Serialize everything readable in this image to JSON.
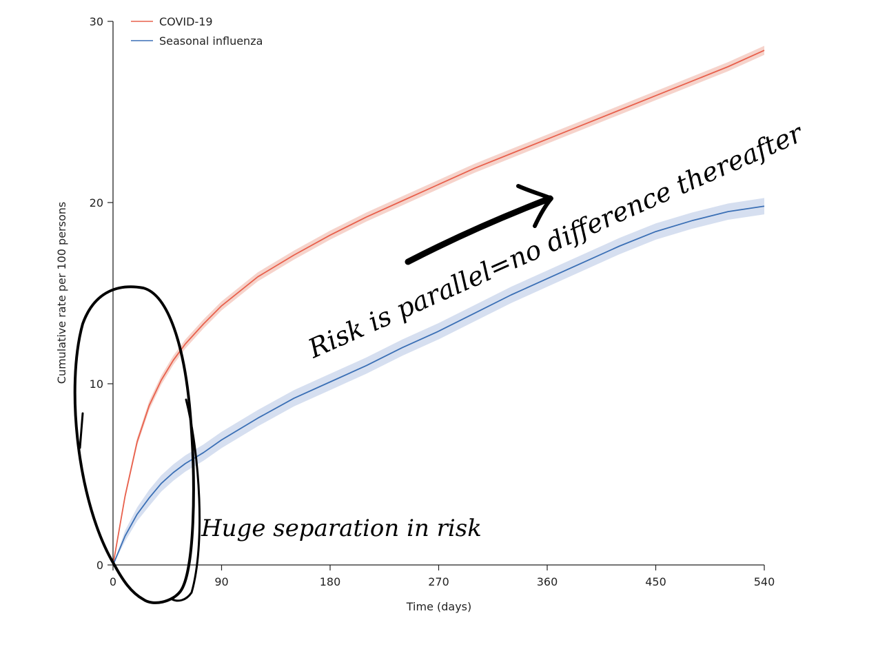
{
  "chart_data": {
    "type": "line",
    "title": "",
    "xlabel": "Time (days)",
    "ylabel": "Cumulative rate per 100 persons",
    "xlim": [
      0,
      540
    ],
    "ylim": [
      0,
      30
    ],
    "x_ticks": [
      0,
      90,
      180,
      270,
      360,
      450,
      540
    ],
    "y_ticks": [
      0,
      10,
      20,
      30
    ],
    "x_tick_labels": [
      "0",
      "90",
      "180",
      "270",
      "360",
      "450",
      "540"
    ],
    "y_tick_labels": [
      "0",
      "10",
      "20",
      "30"
    ],
    "grid": false,
    "legend_position": "top-left",
    "x": [
      0,
      10,
      20,
      30,
      40,
      50,
      60,
      75,
      90,
      120,
      150,
      180,
      210,
      240,
      270,
      300,
      330,
      360,
      390,
      420,
      450,
      480,
      510,
      540
    ],
    "series": [
      {
        "name": "COVID-19",
        "color": "#e8604c",
        "band_color": "#f6d3cb",
        "values": [
          0,
          3.8,
          6.8,
          8.8,
          10.2,
          11.3,
          12.2,
          13.3,
          14.3,
          15.9,
          17.1,
          18.2,
          19.2,
          20.1,
          21.0,
          21.9,
          22.7,
          23.5,
          24.3,
          25.1,
          25.9,
          26.7,
          27.5,
          28.4
        ],
        "band_halfwidth": 0.25
      },
      {
        "name": "Seasonal influenza",
        "color": "#3a6fb5",
        "band_color": "#d6dff0",
        "values": [
          0,
          1.6,
          2.8,
          3.7,
          4.5,
          5.1,
          5.6,
          6.2,
          6.9,
          8.1,
          9.2,
          10.1,
          11.0,
          12.0,
          12.9,
          13.9,
          14.9,
          15.8,
          16.7,
          17.6,
          18.4,
          19.0,
          19.5,
          19.8
        ],
        "band_halfwidth": 0.45
      }
    ],
    "annotations": [
      {
        "text": "Risk is parallel=no difference thereafter"
      },
      {
        "text": "Huge separation in risk"
      }
    ]
  }
}
